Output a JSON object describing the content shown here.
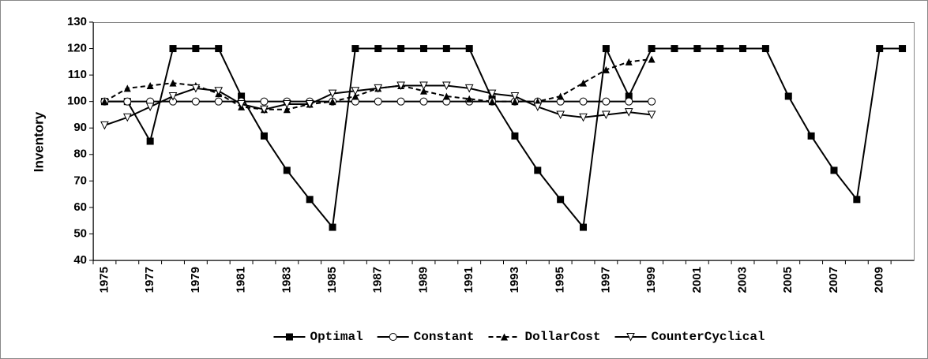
{
  "chart_data": {
    "type": "line",
    "y_label": "Inventory",
    "categories": [
      "1975",
      null,
      "1977",
      null,
      "1979",
      null,
      "1981",
      null,
      "1983",
      null,
      "1985",
      null,
      "1987",
      null,
      "1989",
      null,
      "1991",
      null,
      "1993",
      null,
      "1995",
      null,
      "1997",
      null,
      "1999",
      null,
      "2001",
      null,
      "2003",
      null,
      "2005",
      null,
      "2007",
      null,
      "2009",
      null
    ],
    "ylim": [
      40,
      130
    ],
    "yticks": [
      40,
      50,
      60,
      70,
      80,
      90,
      100,
      110,
      120,
      130
    ],
    "grid": false,
    "legend": "bottom",
    "series": [
      {
        "name": "Optimal",
        "color": "#000000",
        "marker": "square",
        "dash": "solid",
        "values": [
          100,
          100,
          85,
          120,
          120,
          120,
          102,
          87,
          74,
          63,
          52.5,
          120,
          120,
          120,
          120,
          120,
          120,
          101,
          87,
          74,
          63,
          52.5,
          120,
          102,
          120,
          120,
          120,
          120,
          120,
          120,
          102,
          87,
          74,
          63,
          120,
          120
        ]
      },
      {
        "name": "Constant",
        "color": "#000000",
        "marker": "circle",
        "dash": "solid",
        "values": [
          100,
          100,
          100,
          100,
          100,
          100,
          100,
          100,
          100,
          100,
          100,
          100,
          100,
          100,
          100,
          100,
          100,
          100,
          100,
          100,
          100,
          100,
          100,
          100,
          100,
          null,
          null,
          null,
          null,
          null,
          null,
          null,
          null,
          null,
          null,
          null
        ]
      },
      {
        "name": "DollarCost",
        "color": "#000000",
        "marker": "triangle",
        "dash": "dashed",
        "values": [
          100,
          105,
          106,
          107,
          106,
          103,
          98,
          97,
          97,
          99,
          100,
          102,
          105,
          106,
          104,
          102,
          101,
          100,
          100,
          100,
          102,
          107,
          112,
          115,
          116,
          null,
          null,
          null,
          null,
          null,
          null,
          null,
          null,
          null,
          null,
          null
        ]
      },
      {
        "name": "CounterCyclical",
        "color": "#000000",
        "marker": "triangle-down",
        "dash": "solid",
        "values": [
          91,
          94,
          98,
          102,
          105,
          104,
          99,
          97,
          99,
          99,
          103,
          104,
          105,
          106,
          106,
          106,
          105,
          103,
          102,
          98,
          95,
          94,
          95,
          96,
          95,
          null,
          null,
          null,
          null,
          null,
          null,
          null,
          null,
          null,
          null,
          null
        ]
      }
    ]
  }
}
